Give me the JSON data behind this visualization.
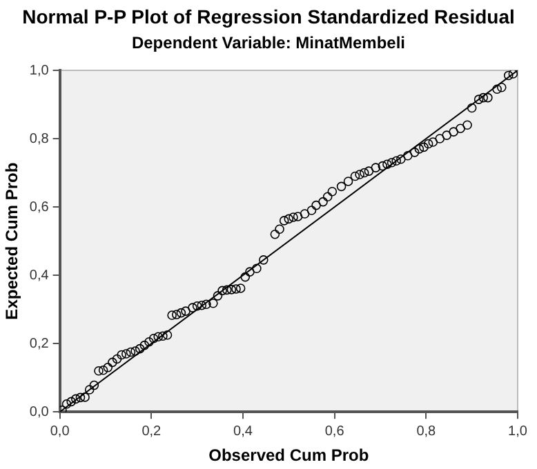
{
  "chart_data": {
    "type": "scatter",
    "title": "Normal P-P Plot of Regression Standardized Residual",
    "subtitle": "Dependent Variable: MinatMembeli",
    "xlabel": "Observed Cum Prob",
    "ylabel": "Expected Cum Prob",
    "xlim": [
      0,
      1
    ],
    "ylim": [
      0,
      1
    ],
    "xticks": [
      {
        "value": 0,
        "label": "0,0"
      },
      {
        "value": 0.2,
        "label": "0,2"
      },
      {
        "value": 0.4,
        "label": "0,4"
      },
      {
        "value": 0.6,
        "label": "0,6"
      },
      {
        "value": 0.8,
        "label": "0,8"
      },
      {
        "value": 1,
        "label": "1,0"
      }
    ],
    "yticks": [
      {
        "value": 0,
        "label": "0,0"
      },
      {
        "value": 0.2,
        "label": "0,2"
      },
      {
        "value": 0.4,
        "label": "0,4"
      },
      {
        "value": 0.6,
        "label": "0,6"
      },
      {
        "value": 0.8,
        "label": "0,8"
      },
      {
        "value": 1,
        "label": "1,0"
      }
    ],
    "grid": false,
    "legend": false,
    "series": [
      {
        "color": "#000000",
        "marker": "circle",
        "x": [
          0.005,
          0.015,
          0.025,
          0.035,
          0.045,
          0.055,
          0.065,
          0.075,
          0.085,
          0.095,
          0.105,
          0.115,
          0.125,
          0.135,
          0.145,
          0.155,
          0.165,
          0.175,
          0.185,
          0.195,
          0.205,
          0.215,
          0.225,
          0.235,
          0.245,
          0.255,
          0.265,
          0.275,
          0.29,
          0.3,
          0.31,
          0.32,
          0.335,
          0.345,
          0.355,
          0.365,
          0.375,
          0.385,
          0.395,
          0.405,
          0.415,
          0.43,
          0.445,
          0.47,
          0.48,
          0.49,
          0.5,
          0.51,
          0.52,
          0.535,
          0.55,
          0.56,
          0.575,
          0.585,
          0.595,
          0.615,
          0.63,
          0.645,
          0.655,
          0.665,
          0.675,
          0.69,
          0.705,
          0.715,
          0.725,
          0.735,
          0.745,
          0.76,
          0.775,
          0.785,
          0.795,
          0.805,
          0.815,
          0.83,
          0.845,
          0.86,
          0.875,
          0.89,
          0.9,
          0.915,
          0.925,
          0.935,
          0.955,
          0.965,
          0.98,
          0.99
        ],
        "values": [
          0.005,
          0.023,
          0.03,
          0.038,
          0.042,
          0.043,
          0.065,
          0.078,
          0.12,
          0.122,
          0.13,
          0.145,
          0.155,
          0.167,
          0.17,
          0.175,
          0.178,
          0.185,
          0.195,
          0.205,
          0.215,
          0.22,
          0.222,
          0.225,
          0.283,
          0.285,
          0.29,
          0.295,
          0.305,
          0.31,
          0.312,
          0.315,
          0.318,
          0.34,
          0.355,
          0.357,
          0.358,
          0.36,
          0.362,
          0.395,
          0.41,
          0.42,
          0.445,
          0.52,
          0.535,
          0.56,
          0.565,
          0.57,
          0.572,
          0.58,
          0.59,
          0.605,
          0.615,
          0.63,
          0.645,
          0.66,
          0.675,
          0.69,
          0.695,
          0.7,
          0.705,
          0.715,
          0.72,
          0.725,
          0.73,
          0.735,
          0.74,
          0.75,
          0.76,
          0.77,
          0.775,
          0.785,
          0.79,
          0.8,
          0.81,
          0.82,
          0.83,
          0.84,
          0.89,
          0.915,
          0.92,
          0.92,
          0.945,
          0.95,
          0.985,
          0.99
        ]
      },
      {
        "type": "line",
        "color": "#000000",
        "marker": "none",
        "x": [
          0,
          1
        ],
        "values": [
          0,
          1
        ]
      }
    ]
  }
}
